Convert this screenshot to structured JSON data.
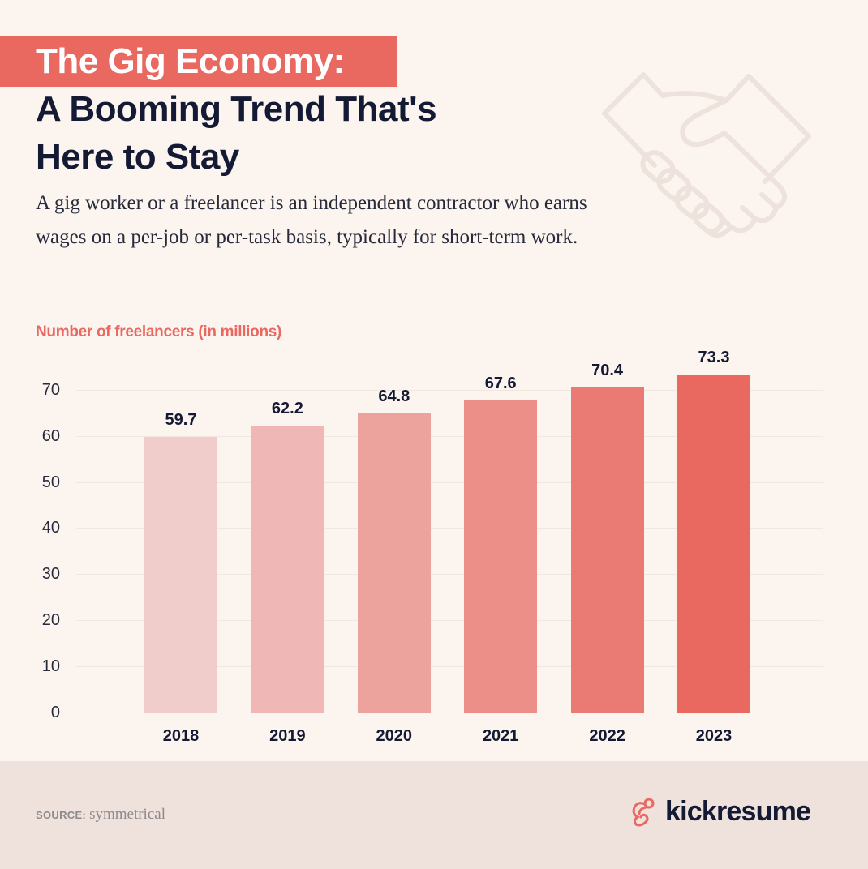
{
  "header": {
    "title_line1": "The Gig Economy:",
    "title_line2": "A Booming Trend That's",
    "title_line3": "Here to Stay",
    "description": "A gig worker or a freelancer is an independent contractor who earns wages on a per-job or per-task basis, typically for short-term work.",
    "illustration": "handshake-icon"
  },
  "chart_label": "Number of freelancers (in millions)",
  "colors": {
    "accent": "#e9685f",
    "text_dark": "#141a33",
    "background": "#fcf4ef",
    "footer_bg": "#efe2dd",
    "bar_colors": [
      "#f0cdcb",
      "#efb7b5",
      "#eca39e",
      "#ec8f89",
      "#ea7b74",
      "#e9685f"
    ]
  },
  "chart_data": {
    "type": "bar",
    "title": "Number of freelancers (in millions)",
    "categories": [
      "2018",
      "2019",
      "2020",
      "2021",
      "2022",
      "2023"
    ],
    "values": [
      59.7,
      62.2,
      64.8,
      67.6,
      70.4,
      73.3
    ],
    "value_labels": [
      "59.7",
      "62.2",
      "64.8",
      "67.6",
      "70.4",
      "73.3"
    ],
    "xlabel": "",
    "ylabel": "Number of freelancers (in millions)",
    "ylim": [
      0,
      75
    ],
    "yticks": [
      "0",
      "10",
      "20",
      "30",
      "40",
      "50",
      "60",
      "70"
    ],
    "grid": true,
    "legend": null
  },
  "footer": {
    "source_label": "SOURCE:",
    "source_value": "symmetrical",
    "brand_name": "kickresume",
    "brand_icon": "kickresume-logo-icon"
  }
}
